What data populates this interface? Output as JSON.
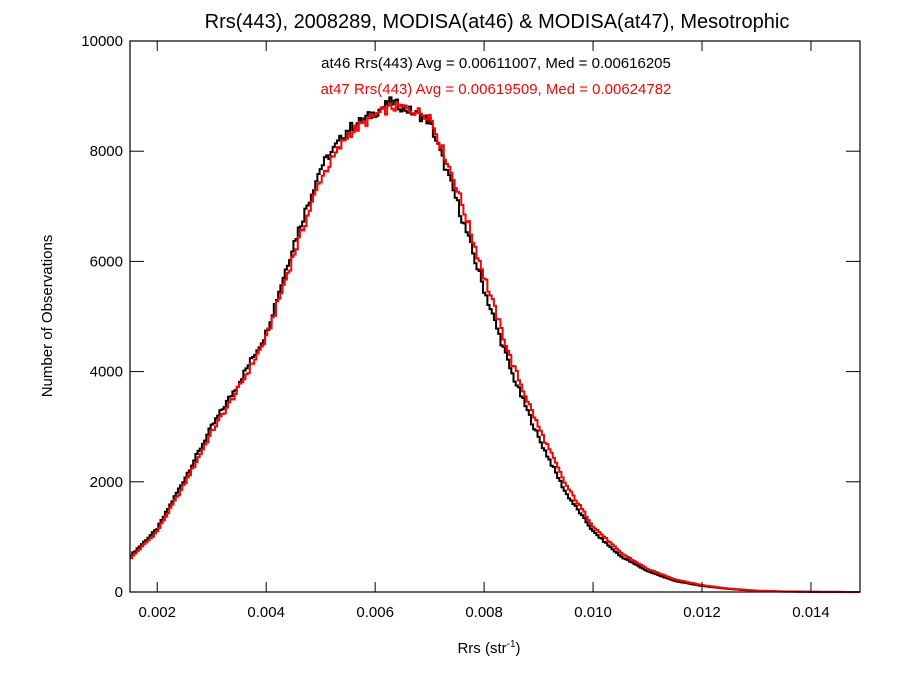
{
  "chart_data": {
    "type": "line",
    "step": true,
    "title": "Rrs(443), 2008289, MODISA(at46) & MODISA(at47), Mesotrophic",
    "xlabel": "Rrs (str",
    "xlabel_superscript": "-1",
    "xlabel_suffix": ")",
    "ylabel": "Number of Observations",
    "xlim": [
      0.0015,
      0.0149
    ],
    "ylim": [
      0,
      10000
    ],
    "x_ticks": [
      0.002,
      0.004,
      0.006,
      0.008,
      0.01,
      0.012,
      0.014
    ],
    "x_tick_labels": [
      "0.002",
      "0.004",
      "0.006",
      "0.008",
      "0.010",
      "0.012",
      "0.014"
    ],
    "y_ticks": [
      0,
      2000,
      4000,
      6000,
      8000,
      10000
    ],
    "y_tick_labels": [
      "0",
      "2000",
      "4000",
      "6000",
      "8000",
      "10000"
    ],
    "grid": false,
    "annotations": [
      "at46 Rrs(443) Avg = 0.00611007, Med = 0.00616205",
      "at47 Rrs(443) Avg = 0.00619509, Med = 0.00624782"
    ],
    "series": [
      {
        "name": "at46",
        "color": "#000000",
        "points": [
          [
            0.0015,
            650
          ],
          [
            0.002,
            1150
          ],
          [
            0.0025,
            2050
          ],
          [
            0.003,
            3000
          ],
          [
            0.0035,
            3800
          ],
          [
            0.004,
            4700
          ],
          [
            0.0045,
            6300
          ],
          [
            0.005,
            7700
          ],
          [
            0.0055,
            8400
          ],
          [
            0.006,
            8700
          ],
          [
            0.0063,
            8900
          ],
          [
            0.0065,
            8800
          ],
          [
            0.007,
            8550
          ],
          [
            0.0075,
            7100
          ],
          [
            0.008,
            5500
          ],
          [
            0.0085,
            4000
          ],
          [
            0.009,
            2800
          ],
          [
            0.0095,
            1800
          ],
          [
            0.01,
            1100
          ],
          [
            0.0105,
            650
          ],
          [
            0.011,
            380
          ],
          [
            0.0115,
            200
          ],
          [
            0.012,
            110
          ],
          [
            0.0125,
            55
          ],
          [
            0.013,
            20
          ],
          [
            0.0135,
            8
          ],
          [
            0.014,
            3
          ],
          [
            0.0149,
            0
          ]
        ]
      },
      {
        "name": "at47",
        "color": "#ff0000",
        "points": [
          [
            0.0015,
            600
          ],
          [
            0.002,
            1100
          ],
          [
            0.0025,
            1950
          ],
          [
            0.003,
            2900
          ],
          [
            0.0035,
            3700
          ],
          [
            0.004,
            4600
          ],
          [
            0.0045,
            6100
          ],
          [
            0.005,
            7500
          ],
          [
            0.0055,
            8300
          ],
          [
            0.006,
            8650
          ],
          [
            0.0063,
            8800
          ],
          [
            0.0065,
            8800
          ],
          [
            0.007,
            8650
          ],
          [
            0.0075,
            7350
          ],
          [
            0.008,
            5750
          ],
          [
            0.0085,
            4200
          ],
          [
            0.009,
            3000
          ],
          [
            0.0095,
            1950
          ],
          [
            0.01,
            1200
          ],
          [
            0.0105,
            720
          ],
          [
            0.011,
            420
          ],
          [
            0.0115,
            230
          ],
          [
            0.012,
            125
          ],
          [
            0.0125,
            62
          ],
          [
            0.013,
            25
          ],
          [
            0.0135,
            10
          ],
          [
            0.014,
            4
          ],
          [
            0.0149,
            0
          ]
        ]
      }
    ]
  }
}
